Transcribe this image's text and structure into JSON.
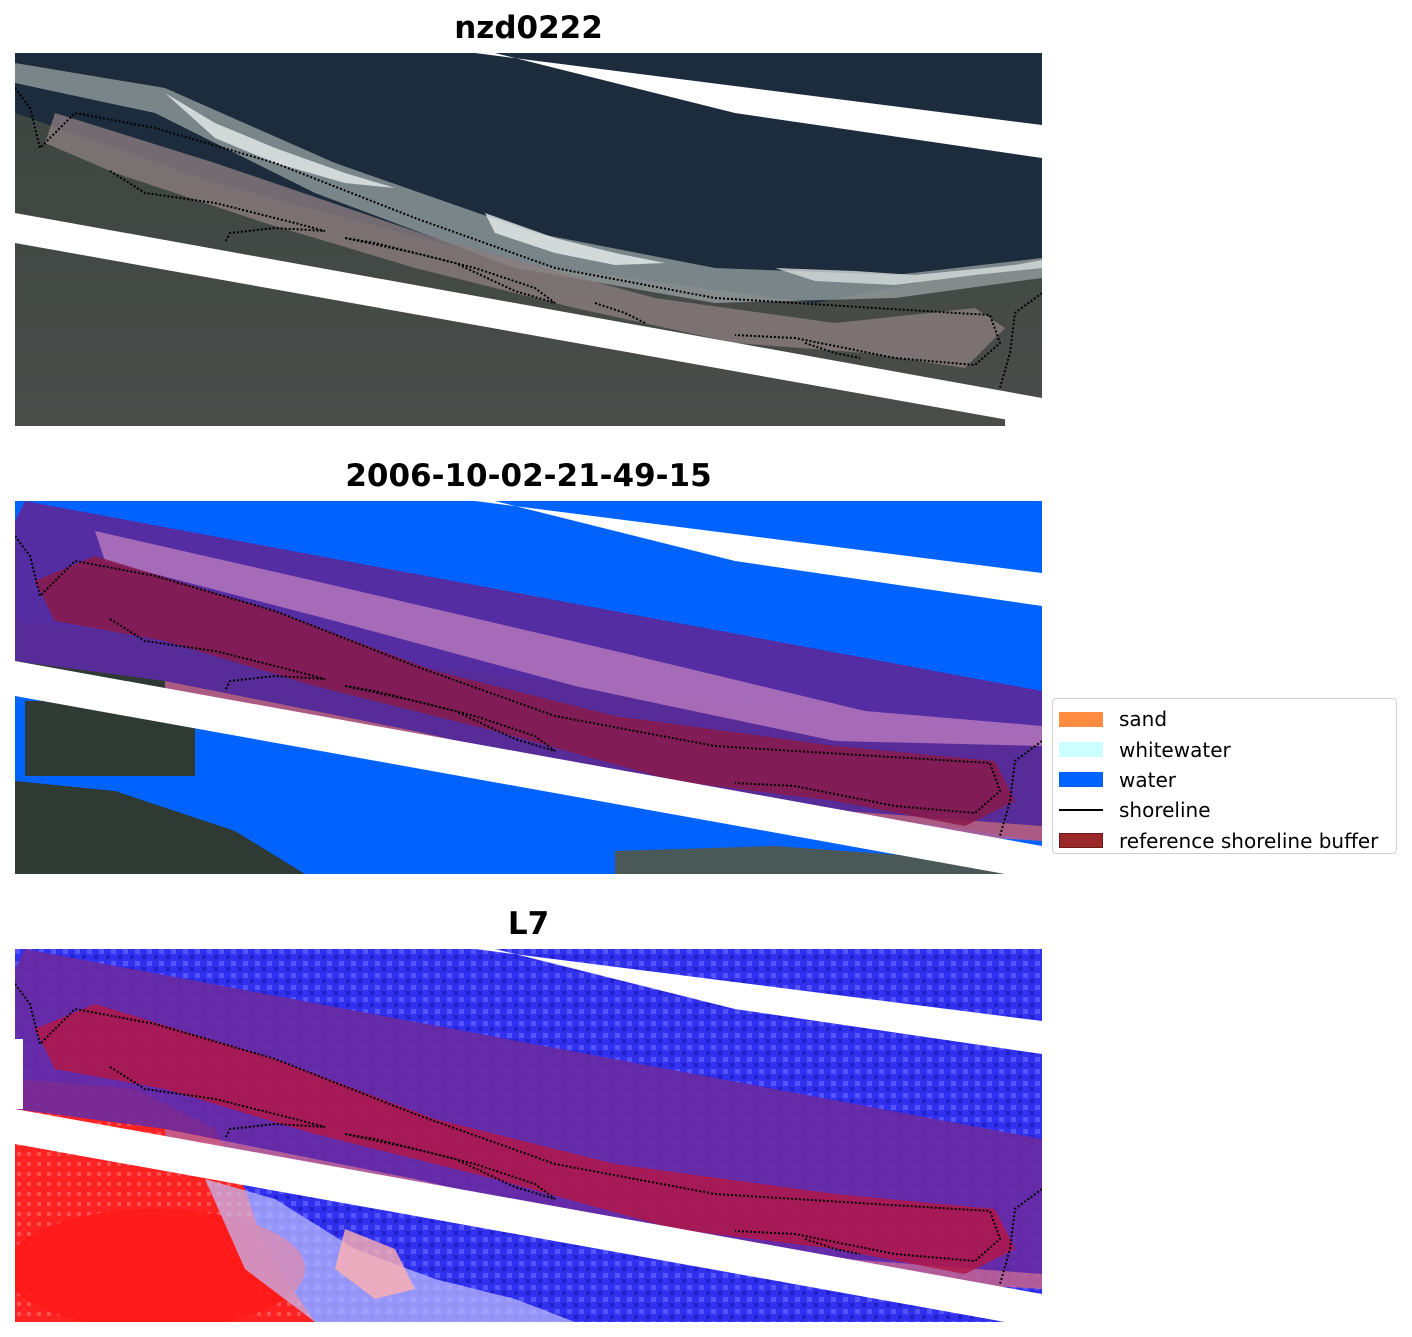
{
  "panels": [
    {
      "title": "nzd0222"
    },
    {
      "title": "2006-10-02-21-49-15"
    },
    {
      "title": "L7"
    }
  ],
  "legend": {
    "items": [
      {
        "label": "sand",
        "kind": "patch",
        "color": "#ff8c40"
      },
      {
        "label": "whitewater",
        "kind": "patch",
        "color": "#ccffff"
      },
      {
        "label": "water",
        "kind": "patch",
        "color": "#0062ff"
      },
      {
        "label": "shoreline",
        "kind": "line",
        "color": "#000000"
      },
      {
        "label": "reference shoreline buffer",
        "kind": "patch",
        "color": "#9b2828"
      }
    ]
  },
  "colors": {
    "land_dark": "#2f3a35",
    "ocean_dark": "#1c2c3d",
    "sand_beach": "#7a6f70",
    "water_class": "#0062ff",
    "buffer": "#800060",
    "index_water": "#2a2aff",
    "index_land": "#ff2020"
  }
}
